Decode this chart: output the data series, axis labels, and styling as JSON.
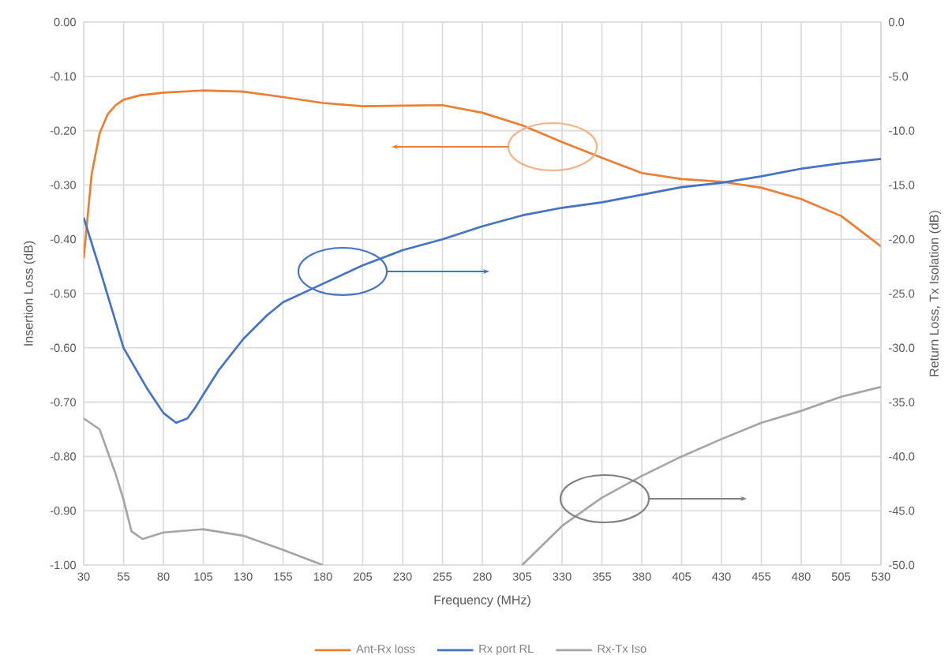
{
  "chart_data": {
    "type": "line",
    "xlabel": "Frequency (MHz)",
    "ylabel": "Insertion Loss (dB)",
    "y2label": "Return Loss, Tx Isolation (dB)",
    "series": [
      {
        "name": "Ant-Rx loss",
        "color": "#ed7d31",
        "x": [
          30,
          35,
          40,
          45,
          50,
          55,
          65,
          80,
          105,
          130,
          155,
          180,
          205,
          230,
          255,
          280,
          305,
          330,
          355,
          380,
          405,
          430,
          455,
          480,
          505,
          530
        ],
        "values": [
          -0.435,
          -0.28,
          -0.205,
          -0.17,
          -0.153,
          -0.143,
          -0.135,
          -0.13,
          -0.126,
          -0.128,
          -0.138,
          -0.149,
          -0.155,
          -0.154,
          -0.153,
          -0.167,
          -0.19,
          -0.221,
          -0.25,
          -0.278,
          -0.289,
          -0.294,
          -0.305,
          -0.326,
          -0.357,
          -0.413
        ]
      },
      {
        "name": "Rx port RL",
        "color": "#4472c4",
        "axis": "y2",
        "x": [
          30,
          40,
          55,
          70,
          80,
          88,
          95,
          100,
          105,
          115,
          130,
          145,
          155,
          180,
          205,
          230,
          255,
          280,
          305,
          330,
          355,
          380,
          405,
          430,
          455,
          480,
          505,
          530
        ],
        "values": [
          -18.0,
          -22.7,
          -30.0,
          -33.8,
          -36.0,
          -36.9,
          -36.5,
          -35.5,
          -34.3,
          -32.0,
          -29.2,
          -27.0,
          -25.8,
          -24.1,
          -22.4,
          -21.0,
          -20.0,
          -18.8,
          -17.8,
          -17.1,
          -16.6,
          -15.9,
          -15.2,
          -14.8,
          -14.2,
          -13.5,
          -13.0,
          -12.6
        ]
      },
      {
        "name": "Rx-Tx Iso",
        "color": "#a5a5a5",
        "axis": "y2",
        "x": [
          30,
          40,
          50,
          55,
          60,
          67,
          80,
          105,
          130,
          155,
          180,
          205,
          230,
          255,
          280,
          305,
          330,
          355,
          380,
          405,
          430,
          455,
          480,
          505,
          530
        ],
        "values": [
          -36.5,
          -37.5,
          -41.6,
          -44.0,
          -46.9,
          -47.6,
          -47.0,
          -46.7,
          -47.3,
          -48.6,
          -50.0,
          null,
          null,
          null,
          null,
          -50.0,
          -46.4,
          -43.8,
          -41.8,
          -40.0,
          -38.4,
          -36.9,
          -35.8,
          -34.5,
          -33.6
        ]
      }
    ],
    "xlim": [
      30,
      530
    ],
    "xticks": [
      30,
      55,
      80,
      105,
      130,
      155,
      180,
      205,
      230,
      255,
      280,
      305,
      330,
      355,
      380,
      405,
      430,
      455,
      480,
      505,
      530
    ],
    "ylim": [
      -1.0,
      0.0
    ],
    "yticks": [
      {
        "value": 0.0,
        "label": "0.00"
      },
      {
        "value": -0.1,
        "label": "-0.10"
      },
      {
        "value": -0.2,
        "label": "-0.20"
      },
      {
        "value": -0.3,
        "label": "-0.30"
      },
      {
        "value": -0.4,
        "label": "-0.40"
      },
      {
        "value": -0.5,
        "label": "-0.50"
      },
      {
        "value": -0.6,
        "label": "-0.60"
      },
      {
        "value": -0.7,
        "label": "-0.70"
      },
      {
        "value": -0.8,
        "label": "-0.80"
      },
      {
        "value": -0.9,
        "label": "-0.90"
      },
      {
        "value": -1.0,
        "label": "-1.00"
      }
    ],
    "y2lim": [
      -50.0,
      0.0
    ],
    "y2ticks": [
      {
        "value": 0.0,
        "label": "0.0"
      },
      {
        "value": -5.0,
        "label": "-5.0"
      },
      {
        "value": -10.0,
        "label": "-10.0"
      },
      {
        "value": -15.0,
        "label": "-15.0"
      },
      {
        "value": -20.0,
        "label": "-20.0"
      },
      {
        "value": -25.0,
        "label": "-25.0"
      },
      {
        "value": -30.0,
        "label": "-30.0"
      },
      {
        "value": -35.0,
        "label": "-35.0"
      },
      {
        "value": -40.0,
        "label": "-40.0"
      },
      {
        "value": -45.0,
        "label": "-45.0"
      },
      {
        "value": -50.0,
        "label": "-50.0"
      }
    ],
    "grid": true,
    "legend": "bottom",
    "line_style": "solid"
  }
}
